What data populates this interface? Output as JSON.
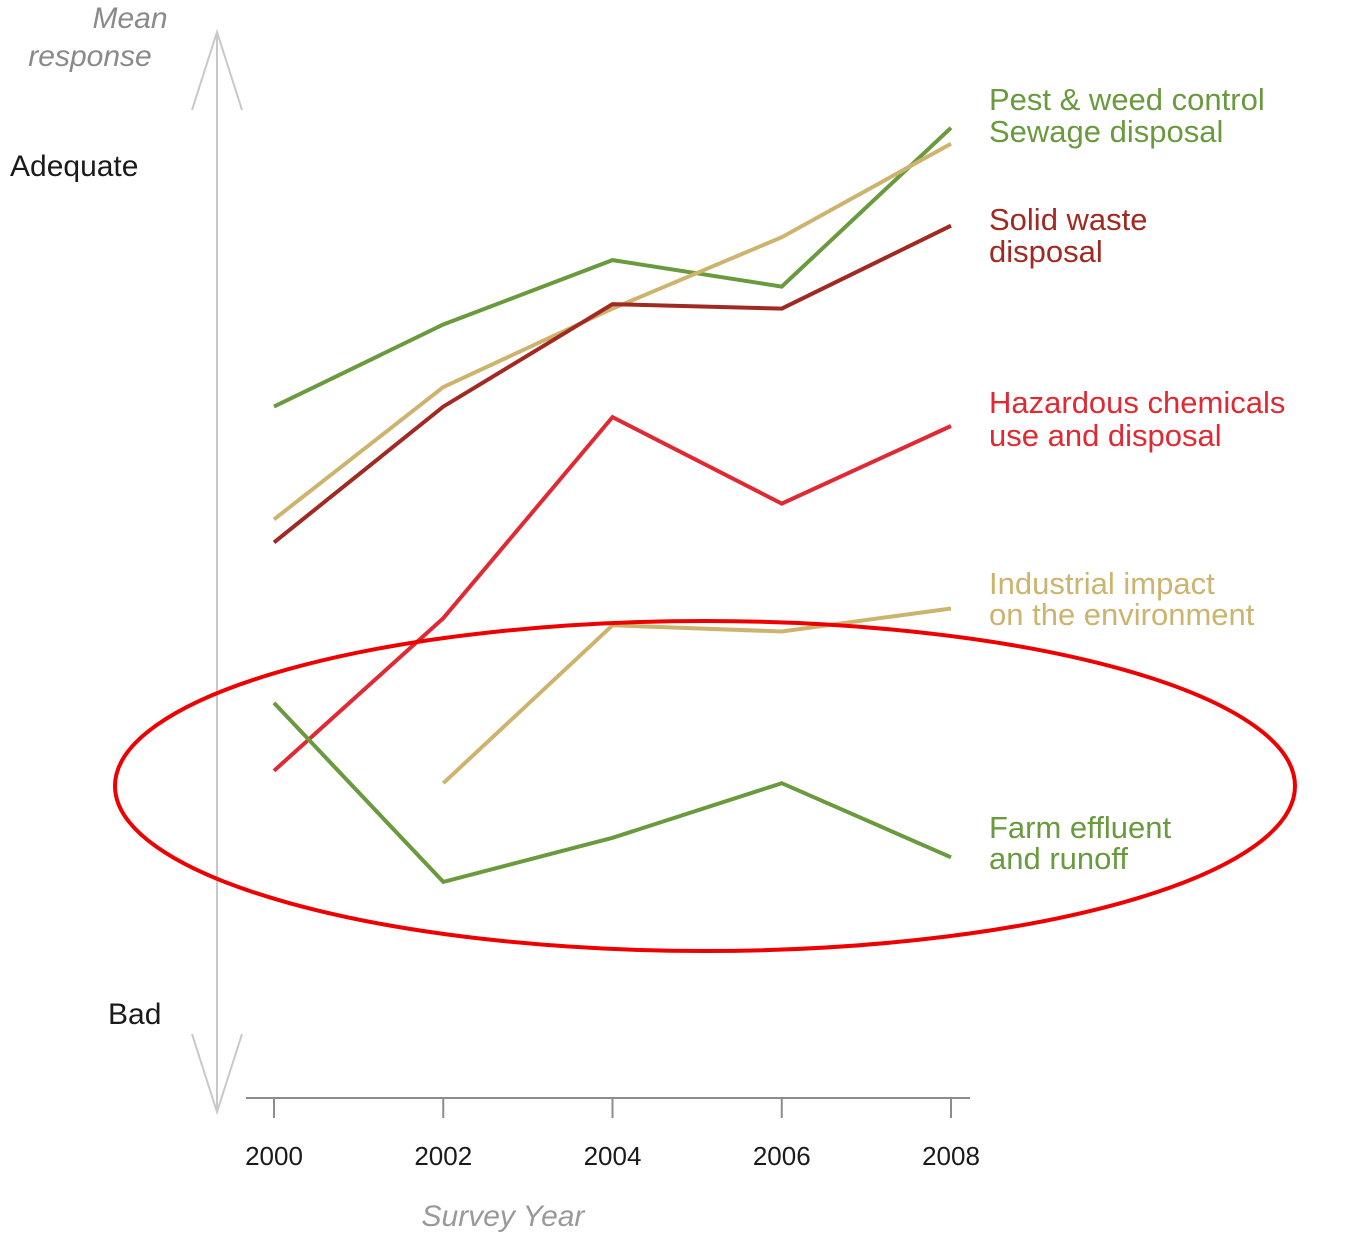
{
  "chart_data": {
    "type": "line",
    "ylabel": [
      "Mean",
      "response"
    ],
    "xlabel": "Survey Year",
    "y_levels": {
      "top": "Adequate",
      "bottom": "Bad"
    },
    "x_ticks": [
      "2000",
      "2002",
      "2004",
      "2006",
      "2008"
    ],
    "ylim": [
      0,
      100
    ],
    "series": [
      {
        "name": "Pest & weed control",
        "color": "#6a9a3e",
        "x": [
          2000,
          2002,
          2004,
          2006,
          2008
        ],
        "values": [
          72.5,
          81.8,
          89.1,
          86.1,
          104.1
        ]
      },
      {
        "name": "Sewage disposal",
        "color": "#cdb46e",
        "x": [
          2000,
          2002,
          2004,
          2006,
          2008
        ],
        "values": [
          59.7,
          74.7,
          83.6,
          91.7,
          102.3
        ]
      },
      {
        "name": "Solid waste disposal",
        "color": "#a02a22",
        "x": [
          2000,
          2002,
          2004,
          2006,
          2008
        ],
        "values": [
          57.1,
          72.5,
          84.1,
          83.6,
          93.0
        ]
      },
      {
        "name": "Hazardous chemicals use and disposal",
        "color": "#e02a33",
        "x": [
          2000,
          2002,
          2004,
          2006,
          2008
        ],
        "values": [
          31.2,
          48.5,
          71.3,
          61.5,
          70.3
        ]
      },
      {
        "name": "Industrial impact on the environment",
        "color": "#cdb46e",
        "x": [
          2002,
          2004,
          2006,
          2008
        ],
        "values": [
          29.8,
          47.7,
          47.0,
          49.6
        ]
      },
      {
        "name": "Farm effluent and runoff",
        "color": "#6a9a3e",
        "x": [
          2000,
          2002,
          2004,
          2006,
          2008
        ],
        "values": [
          38.9,
          18.6,
          23.6,
          29.8,
          21.4
        ]
      }
    ],
    "series_labels": [
      {
        "lines": [
          "Pest & weed control",
          "Sewage disposal"
        ],
        "color": "#6a9a3e"
      },
      {
        "lines": [
          "Solid waste",
          "disposal"
        ],
        "color": "#a02a22"
      },
      {
        "lines": [
          "Hazardous chemicals",
          "use and disposal"
        ],
        "color": "#e02a33"
      },
      {
        "lines": [
          "Industrial impact",
          "on the environment"
        ],
        "color": "#cdb46e"
      },
      {
        "lines": [
          "Farm effluent",
          "and runoff"
        ],
        "color": "#6a9a3e"
      }
    ],
    "annotation": {
      "shape": "ellipse",
      "color": "#ee0000"
    }
  }
}
